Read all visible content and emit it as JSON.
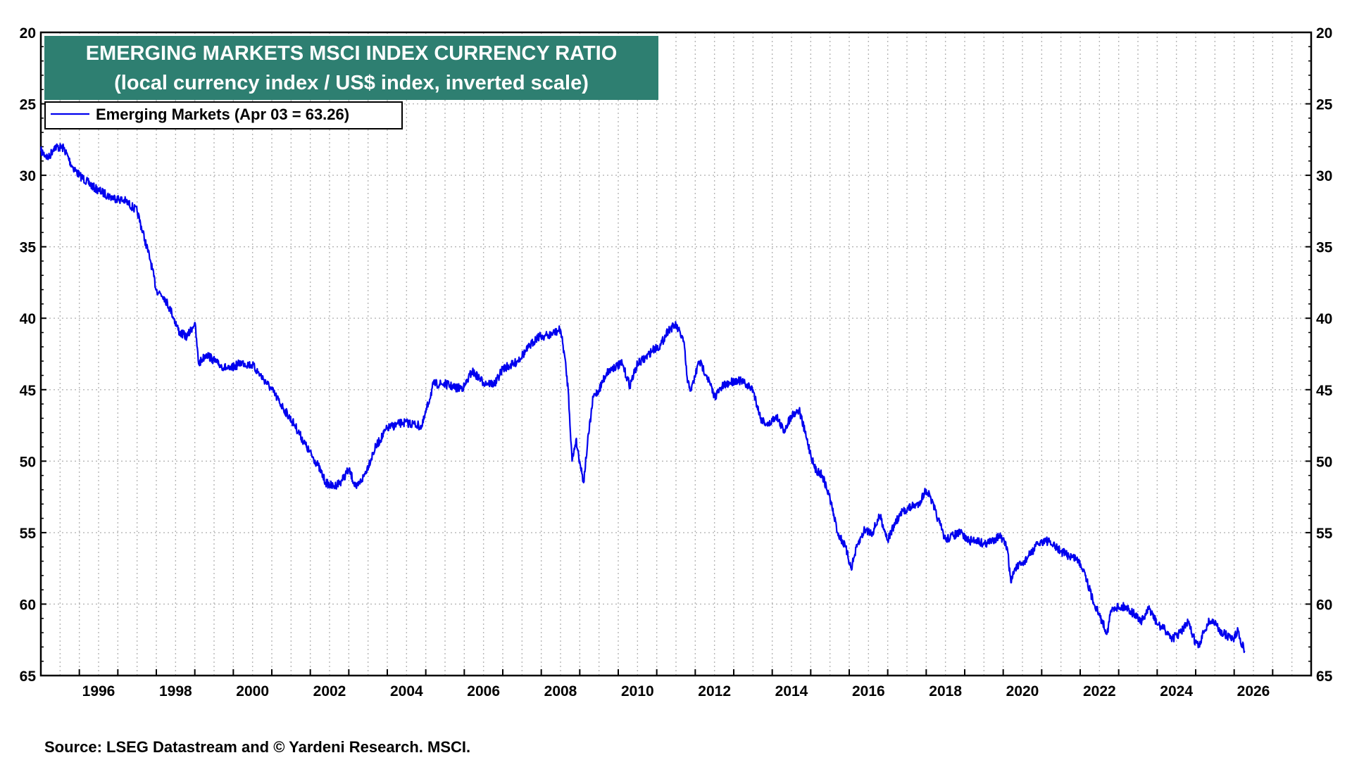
{
  "chart_data": {
    "type": "line",
    "title": "EMERGING MARKETS MSCI INDEX CURRENCY RATIO",
    "subtitle": "(local currency index / US$ index, inverted scale)",
    "legend": [
      "Emerging Markets (Apr 03 = 63.26)"
    ],
    "legend_position": "top-left",
    "source": "Source: LSEG Datastream and © Yardeni Research. MSCI.",
    "xlim": [
      1995.0,
      2028.0
    ],
    "ylim": [
      20,
      65
    ],
    "y_inverted": true,
    "grid": true,
    "x_ticks": [
      "1996",
      "1998",
      "2000",
      "2002",
      "2004",
      "2006",
      "2008",
      "2010",
      "2012",
      "2014",
      "2016",
      "2018",
      "2020",
      "2022",
      "2024",
      "2026"
    ],
    "y_ticks": [
      "20",
      "25",
      "30",
      "35",
      "40",
      "45",
      "50",
      "55",
      "60",
      "65"
    ],
    "series": [
      {
        "name": "Emerging Markets",
        "color": "#0000ee",
        "x": [
          1995.0,
          1995.2,
          1995.35,
          1995.6,
          1995.8,
          1996.0,
          1996.4,
          1996.8,
          1997.2,
          1997.5,
          1997.7,
          1997.85,
          1998.0,
          1998.2,
          1998.4,
          1998.6,
          1998.8,
          1999.0,
          1999.1,
          1999.3,
          1999.6,
          1999.9,
          2000.2,
          2000.5,
          2000.8,
          2001.0,
          2001.3,
          2001.6,
          2001.9,
          2002.2,
          2002.4,
          2002.6,
          2002.8,
          2003.0,
          2003.2,
          2003.4,
          2003.7,
          2004.0,
          2004.4,
          2004.7,
          2004.9,
          2005.2,
          2005.5,
          2005.8,
          2006.0,
          2006.2,
          2006.5,
          2006.8,
          2007.0,
          2007.3,
          2007.6,
          2007.9,
          2008.2,
          2008.5,
          2008.6,
          2008.7,
          2008.8,
          2008.9,
          2009.0,
          2009.1,
          2009.2,
          2009.35,
          2009.5,
          2009.7,
          2009.9,
          2010.1,
          2010.3,
          2010.5,
          2010.7,
          2010.9,
          2011.1,
          2011.3,
          2011.5,
          2011.7,
          2011.8,
          2011.9,
          2012.1,
          2012.3,
          2012.5,
          2012.7,
          2012.9,
          2013.1,
          2013.3,
          2013.5,
          2013.7,
          2013.9,
          2014.1,
          2014.3,
          2014.5,
          2014.7,
          2014.9,
          2015.1,
          2015.3,
          2015.5,
          2015.7,
          2015.9,
          2016.05,
          2016.2,
          2016.4,
          2016.6,
          2016.8,
          2017.0,
          2017.2,
          2017.4,
          2017.6,
          2017.8,
          2018.0,
          2018.1,
          2018.3,
          2018.5,
          2018.7,
          2018.9,
          2019.1,
          2019.3,
          2019.5,
          2019.7,
          2019.9,
          2020.1,
          2020.2,
          2020.3,
          2020.5,
          2020.7,
          2020.9,
          2021.1,
          2021.3,
          2021.5,
          2021.7,
          2021.9,
          2022.1,
          2022.3,
          2022.5,
          2022.7,
          2022.8,
          2022.9,
          2023.0,
          2023.2,
          2023.4,
          2023.6,
          2023.8,
          2024.0,
          2024.2,
          2024.4,
          2024.6,
          2024.8,
          2025.0,
          2025.1,
          2025.2,
          2025.35,
          2025.5,
          2025.6,
          2025.8,
          2026.0,
          2026.1,
          2026.2,
          2026.27
        ],
        "values": [
          28.3,
          28.8,
          28.0,
          28.1,
          29.3,
          30.0,
          30.9,
          31.5,
          31.8,
          32.5,
          34.5,
          36.0,
          38.0,
          38.5,
          39.6,
          41.0,
          41.3,
          40.3,
          43.2,
          42.5,
          43.2,
          43.6,
          43.1,
          43.3,
          44.3,
          45.0,
          46.3,
          47.5,
          49.0,
          50.3,
          51.5,
          51.8,
          51.4,
          50.6,
          51.9,
          51.0,
          49.0,
          47.7,
          47.3,
          47.4,
          47.6,
          44.6,
          44.6,
          44.9,
          44.8,
          43.7,
          44.5,
          44.6,
          43.5,
          43.2,
          42.3,
          41.3,
          41.2,
          40.8,
          42.5,
          45.0,
          50.0,
          48.5,
          50.0,
          51.5,
          48.8,
          45.5,
          45.0,
          43.8,
          43.4,
          43.2,
          44.7,
          43.2,
          42.8,
          42.2,
          41.9,
          40.8,
          40.5,
          41.6,
          44.5,
          45.0,
          43.0,
          44.0,
          45.5,
          44.8,
          44.5,
          44.3,
          44.6,
          45.0,
          47.0,
          47.5,
          46.8,
          47.9,
          46.8,
          46.4,
          48.5,
          50.5,
          51.0,
          52.6,
          55.0,
          56.0,
          57.5,
          56.0,
          54.8,
          55.0,
          53.8,
          55.5,
          54.3,
          53.5,
          53.2,
          53.0,
          52.0,
          52.5,
          54.0,
          55.5,
          55.2,
          55.0,
          55.6,
          55.5,
          55.8,
          55.6,
          55.2,
          56.0,
          58.5,
          57.5,
          57.2,
          56.5,
          55.8,
          55.5,
          55.9,
          56.3,
          56.6,
          56.8,
          57.6,
          59.5,
          60.8,
          62.0,
          60.5,
          60.2,
          60.2,
          60.2,
          60.7,
          61.2,
          60.3,
          61.4,
          61.8,
          62.4,
          62.0,
          61.3,
          62.7,
          63.0,
          62.0,
          61.2,
          61.3,
          61.8,
          62.2,
          62.4,
          61.8,
          62.8,
          63.26
        ]
      }
    ]
  }
}
